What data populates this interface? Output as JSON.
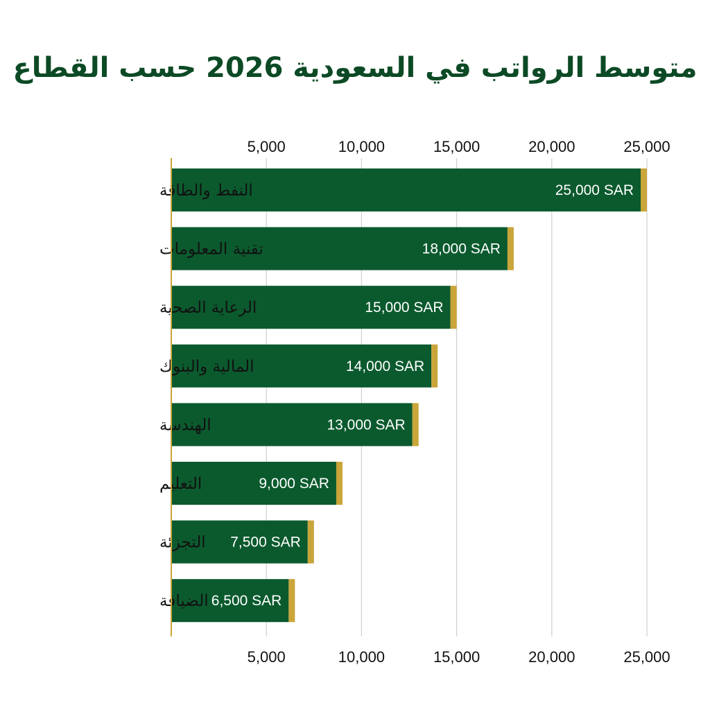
{
  "chart_data": {
    "type": "bar",
    "orientation": "horizontal",
    "title": "متوسط الرواتب في السعودية 2026 حسب القطاع",
    "categories": [
      "النفط والطاقة",
      "تقنية المعلومات",
      "الرعاية الصحية",
      "المالية والبنوك",
      "الهندسة",
      "التعليم",
      "التجزئة",
      "الضيافة"
    ],
    "values": [
      25000,
      18000,
      15000,
      14000,
      13000,
      9000,
      7500,
      6500
    ],
    "value_labels": [
      "25,000 SAR",
      "18,000 SAR",
      "15,000 SAR",
      "14,000 SAR",
      "13,000 SAR",
      "9,000 SAR",
      "7,500 SAR",
      "6,500 SAR"
    ],
    "xlim": [
      0,
      25000
    ],
    "xticks": [
      5000,
      10000,
      15000,
      20000,
      25000
    ],
    "xtick_labels": [
      "5,000",
      "10,000",
      "15,000",
      "20,000",
      "25,000"
    ],
    "xaxis_position": "top-and-bottom",
    "grid": true,
    "colors": {
      "bar": "#0b5a2e",
      "bar_cap": "#c9a53a",
      "axis": "#c9a53a",
      "grid": "#cfcfcf",
      "title": "#0c4a25",
      "value_text": "#ffffff"
    }
  }
}
